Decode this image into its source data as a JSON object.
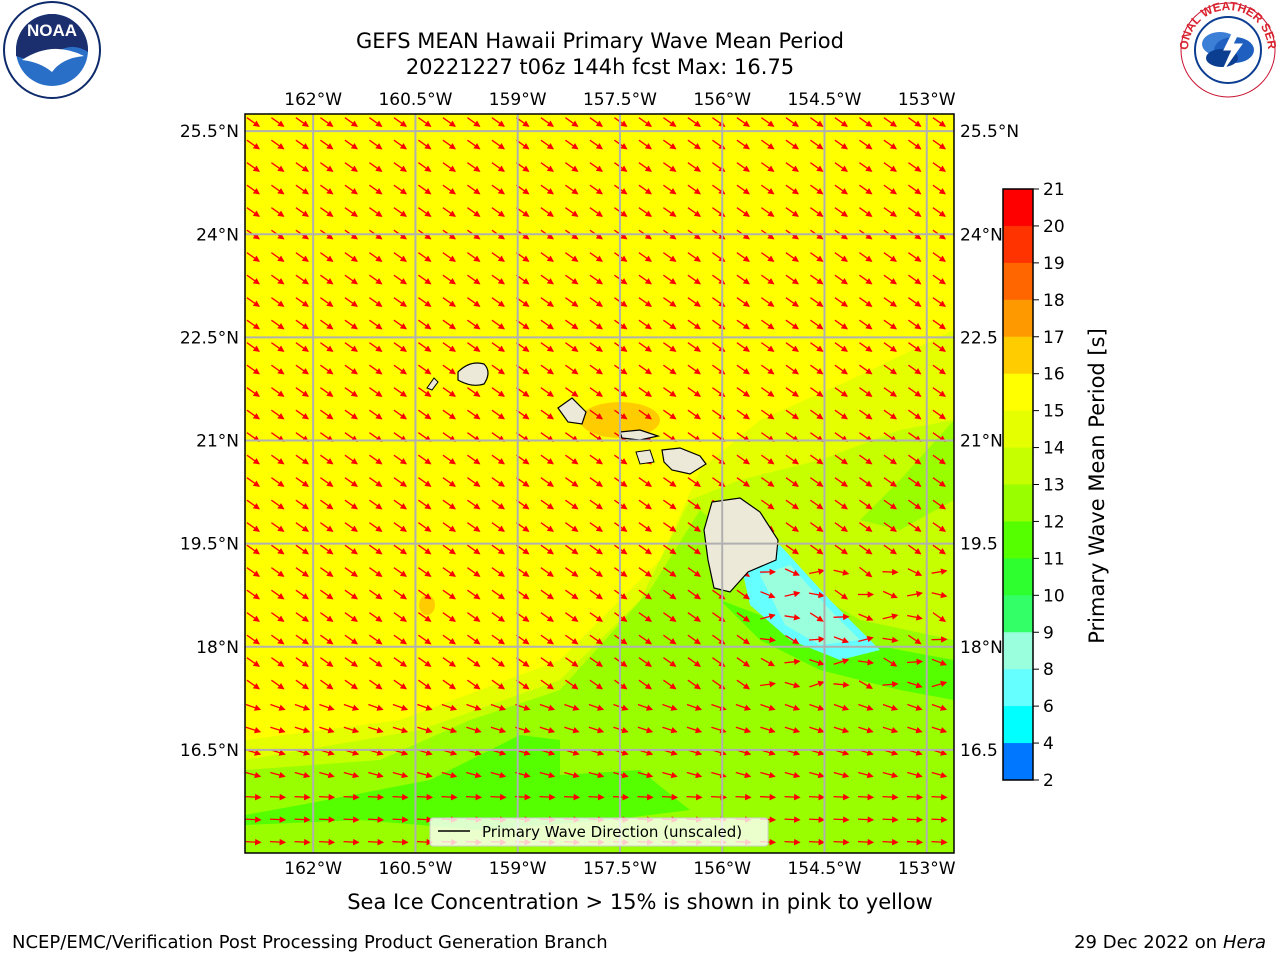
{
  "title": {
    "line1": "GEFS MEAN Hawaii Primary Wave Mean Period",
    "line2": "20221227 t06z 144h fcst   Max: 16.75"
  },
  "logos": {
    "noaa_text": "NOAA",
    "noaa_ring": "NATIONAL OCEANIC AND ATMOSPHERIC ADMINISTRATION · U.S. DEPARTMENT OF COMMERCE",
    "nws_ring": "NATIONAL WEATHER SERVICE"
  },
  "axes": {
    "lon_ticks": [
      "162°W",
      "160.5°W",
      "159°W",
      "157.5°W",
      "156°W",
      "154.5°W",
      "153°W"
    ],
    "lat_ticks_left": [
      "25.5°N",
      "24°N",
      "22.5°N",
      "21°N",
      "19.5°N",
      "18°N",
      "16.5°N"
    ],
    "lat_ticks_right": [
      "25.5°N",
      "24°N",
      "22.5",
      "21°N",
      "19.5",
      "18°N",
      "16.5"
    ],
    "lon_values": [
      -162,
      -160.5,
      -159,
      -157.5,
      -156,
      -154.5,
      -153
    ],
    "lat_values": [
      25.5,
      24,
      22.5,
      21,
      19.5,
      18,
      16.5
    ],
    "lon_range": [
      -163,
      -152.6
    ],
    "lat_range": [
      15.0,
      25.75
    ]
  },
  "legend": {
    "label": "Primary Wave Direction (unscaled)"
  },
  "colorbar": {
    "label": "Primary Wave Mean Period [s]",
    "ticks": [
      "21",
      "20",
      "19",
      "18",
      "17",
      "16",
      "15",
      "14",
      "13",
      "12",
      "11",
      "10",
      "9",
      "8",
      "6",
      "4",
      "2"
    ],
    "colors": [
      "#ff0000",
      "#ff3300",
      "#ff6600",
      "#ff9900",
      "#ffcc00",
      "#ffff00",
      "#e6ff00",
      "#c6ff00",
      "#99ff00",
      "#55ff00",
      "#2eff2e",
      "#33ff66",
      "#99ffdd",
      "#66ffff",
      "#00ffff",
      "#0077ff",
      "#0000ff"
    ]
  },
  "fill_colors": {
    "yellow": "#ffff00",
    "lime_yellow": "#e6ff00",
    "yellow_green": "#c6ff00",
    "green": "#99ff00",
    "bright_green": "#55ff00",
    "cyan": "#66ffff",
    "land": "#ede9d9",
    "arrow": "#ff0000"
  },
  "caption": "Sea Ice Concentration > 15% is shown in pink to yellow",
  "footer": {
    "left": "NCEP/EMC/Verification Post Processing Product Generation Branch",
    "date": "29 Dec 2022 on",
    "machine": "Hera"
  }
}
